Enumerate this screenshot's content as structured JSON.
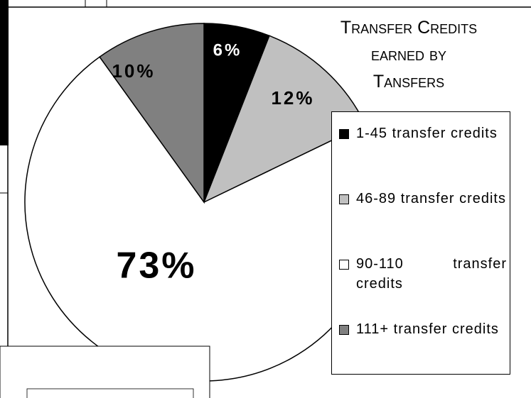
{
  "chart_data": {
    "type": "pie",
    "title": "Transfer Credits earned by Tansfers",
    "categories": [
      "1-45 transfer credits",
      "46-89 transfer credits",
      "90-110 transfer credits",
      "111+ transfer credits"
    ],
    "values": [
      6,
      12,
      73,
      10
    ],
    "value_labels": [
      "6%",
      "12%",
      "73%",
      "10%"
    ],
    "colors": [
      "#000000",
      "#c0c0c0",
      "#ffffff",
      "#808080"
    ],
    "legend": "right"
  }
}
